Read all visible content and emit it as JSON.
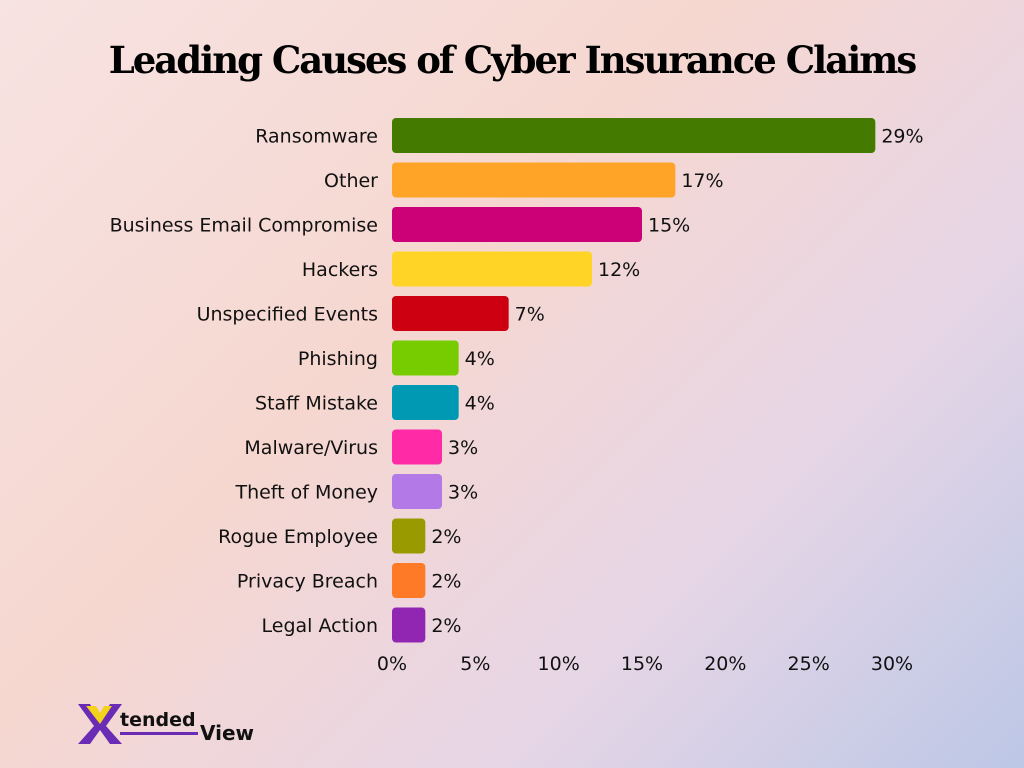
{
  "title": "Leading Causes of Cyber Insurance Claims",
  "logo_text": "XtendedView",
  "chart_data": {
    "type": "bar",
    "orientation": "horizontal",
    "title": "Leading Causes of Cyber Insurance Claims",
    "xlabel": "",
    "ylabel": "",
    "categories": [
      "Ransomware",
      "Other",
      "Business Email Compromise",
      "Hackers",
      "Unspecified Events",
      "Phishing",
      "Staff Mistake",
      "Malware/Virus",
      "Theft of Money",
      "Rogue Employee",
      "Privacy Breach",
      "Legal Action"
    ],
    "values": [
      29,
      17,
      15,
      12,
      7,
      4,
      4,
      3,
      3,
      2,
      2,
      2
    ],
    "value_labels": [
      "29%",
      "17%",
      "15%",
      "12%",
      "7%",
      "4%",
      "4%",
      "3%",
      "3%",
      "2%",
      "2%",
      "2%"
    ],
    "colors": [
      "#457a00",
      "#ffa426",
      "#cc0077",
      "#ffd426",
      "#cc0011",
      "#77cc00",
      "#0099b3",
      "#ff2aa6",
      "#b379e6",
      "#999900",
      "#ff7a26",
      "#9126b3"
    ],
    "xlim": [
      0,
      30
    ],
    "xticks": [
      "0%",
      "5%",
      "10%",
      "15%",
      "20%",
      "25%",
      "30%"
    ],
    "grid": false,
    "legend": "none"
  }
}
